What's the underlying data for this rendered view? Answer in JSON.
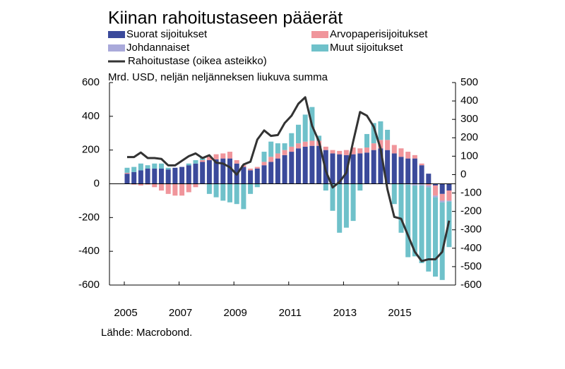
{
  "chart_data": {
    "type": "bar",
    "stacked": true,
    "title": "Kiinan rahoitustaseen pääerät",
    "subtitle": "Mrd. USD, neljän neljänneksen liukuva summa",
    "source": "Lähde: Macrobond.",
    "categories": [
      "2005",
      null,
      null,
      null,
      null,
      null,
      null,
      null,
      "2007",
      null,
      null,
      null,
      null,
      null,
      null,
      null,
      "2009",
      null,
      null,
      null,
      null,
      null,
      null,
      null,
      "2011",
      null,
      null,
      null,
      null,
      null,
      null,
      null,
      "2013",
      null,
      null,
      null,
      null,
      null,
      null,
      null,
      "2015",
      null,
      null,
      null,
      null,
      null,
      null,
      null
    ],
    "ylim": [
      -600,
      600
    ],
    "yticks": [
      -600,
      -400,
      -200,
      0,
      200,
      400,
      600
    ],
    "y2lim": [
      -600,
      500
    ],
    "y2ticks": [
      -600,
      -500,
      -400,
      -300,
      -200,
      -100,
      0,
      100,
      200,
      300,
      400,
      500
    ],
    "series": [
      {
        "name": "Suorat sijoitukset",
        "color": "#3b4a9b",
        "values": [
          60,
          70,
          80,
          90,
          90,
          90,
          85,
          95,
          100,
          110,
          120,
          130,
          140,
          145,
          150,
          150,
          120,
          100,
          80,
          90,
          110,
          130,
          150,
          170,
          190,
          210,
          220,
          225,
          225,
          200,
          180,
          175,
          170,
          175,
          180,
          185,
          200,
          210,
          200,
          180,
          160,
          150,
          150,
          110,
          60,
          -10,
          -60,
          -40
        ]
      },
      {
        "name": "Arvopaperisijoitukset",
        "color": "#f0959b",
        "values": [
          5,
          -5,
          -10,
          -5,
          -20,
          -40,
          -60,
          -70,
          -70,
          -50,
          -20,
          10,
          20,
          30,
          30,
          40,
          20,
          10,
          10,
          10,
          20,
          30,
          30,
          30,
          30,
          30,
          30,
          30,
          30,
          20,
          20,
          20,
          30,
          40,
          30,
          30,
          40,
          50,
          60,
          50,
          50,
          40,
          20,
          10,
          -10,
          -60,
          -40,
          -60
        ]
      },
      {
        "name": "Johdannaiset",
        "color": "#a9a9da",
        "values": [
          0,
          0,
          0,
          0,
          0,
          0,
          0,
          0,
          0,
          0,
          0,
          0,
          0,
          0,
          0,
          0,
          0,
          0,
          0,
          0,
          0,
          0,
          0,
          0,
          0,
          0,
          0,
          0,
          0,
          0,
          0,
          0,
          0,
          0,
          0,
          0,
          0,
          0,
          0,
          0,
          0,
          -5,
          -10,
          -10,
          -10,
          -10,
          -10,
          -5
        ]
      },
      {
        "name": "Muut sijoitukset",
        "color": "#6fc1ca",
        "values": [
          30,
          30,
          40,
          20,
          30,
          30,
          10,
          0,
          0,
          10,
          20,
          20,
          -60,
          -80,
          -100,
          -110,
          -120,
          -150,
          -60,
          -20,
          60,
          90,
          60,
          40,
          80,
          110,
          160,
          200,
          30,
          -40,
          -160,
          -290,
          -260,
          -220,
          -40,
          80,
          120,
          110,
          60,
          -120,
          -290,
          -430,
          -420,
          -460,
          -500,
          -470,
          -460,
          -270
        ]
      },
      {
        "name": "Rahoitustase (oikea asteikko)",
        "color": "#333333",
        "type": "line",
        "axis": "y2",
        "values": [
          95,
          95,
          120,
          90,
          90,
          85,
          50,
          50,
          75,
          100,
          115,
          90,
          105,
          65,
          60,
          40,
          0,
          55,
          70,
          190,
          240,
          210,
          215,
          280,
          320,
          385,
          420,
          265,
          180,
          20,
          -70,
          -40,
          10,
          180,
          340,
          320,
          260,
          140,
          -80,
          -230,
          -240,
          -330,
          -420,
          -470,
          -460,
          -460,
          -420,
          -250
        ]
      }
    ]
  }
}
